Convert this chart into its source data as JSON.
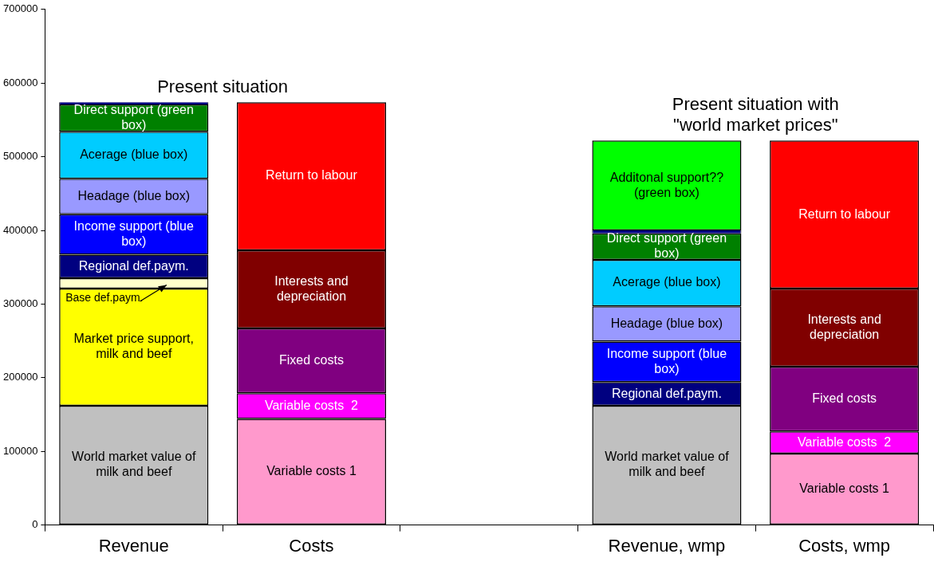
{
  "chart_data": {
    "type": "bar",
    "stacked": true,
    "categories": [
      "Revenue",
      "Costs",
      null,
      "Revenue, wmp",
      "Costs, wmp"
    ],
    "ylim": [
      0,
      700000
    ],
    "yticks": [
      0,
      100000,
      200000,
      300000,
      400000,
      500000,
      600000,
      700000
    ],
    "series": [
      {
        "name": "World market value of milk and beef",
        "color": "#c0c0c0",
        "values": [
          162000,
          null,
          null,
          162000,
          null
        ]
      },
      {
        "name": "Market price support, milk and beef",
        "color": "#ffff00",
        "values": [
          159000,
          null,
          null,
          null,
          null
        ]
      },
      {
        "name": "Base def.paym.",
        "color": "#ffffcc",
        "values": [
          14000,
          null,
          null,
          null,
          null
        ]
      },
      {
        "name": "Regional def.paym.",
        "color": "#000080",
        "values": [
          32000,
          null,
          null,
          32000,
          null
        ]
      },
      {
        "name": "Income support (blue box)",
        "color": "#0000ff",
        "values": [
          55000,
          null,
          null,
          55000,
          null
        ]
      },
      {
        "name": "Headage (blue box)",
        "color": "#9999ff",
        "values": [
          48000,
          null,
          null,
          48000,
          null
        ]
      },
      {
        "name": "Acerage (blue box)",
        "color": "#00ccff",
        "values": [
          64000,
          null,
          null,
          63000,
          null
        ]
      },
      {
        "name": "Direct support (green box)",
        "color": "#008000",
        "values": [
          37000,
          null,
          null,
          36000,
          null
        ]
      },
      {
        "color": "#000080",
        "values": [
          3000,
          null,
          null,
          4000,
          null
        ]
      },
      {
        "name": "Additonal support?? (green box)",
        "color": "#00ff00",
        "values": [
          null,
          null,
          null,
          122000,
          null
        ]
      },
      {
        "name": "Variable costs 1",
        "color": "#ff99cc",
        "values": [
          null,
          144000,
          null,
          null,
          97000
        ]
      },
      {
        "name": "Variable costs  2",
        "color": "#ff00ff",
        "values": [
          null,
          35000,
          null,
          null,
          30000
        ]
      },
      {
        "name": "Fixed costs",
        "color": "#800080",
        "values": [
          null,
          88000,
          null,
          null,
          88000
        ]
      },
      {
        "name": "Interests and depreciation",
        "color": "#800000",
        "values": [
          null,
          106000,
          null,
          null,
          106000
        ]
      },
      {
        "name": "Return to labour",
        "color": "#ff0000",
        "values": [
          null,
          201000,
          null,
          null,
          201000
        ]
      }
    ],
    "annotations": [
      "Present situation",
      "Present situation with \"world market prices\""
    ]
  }
}
